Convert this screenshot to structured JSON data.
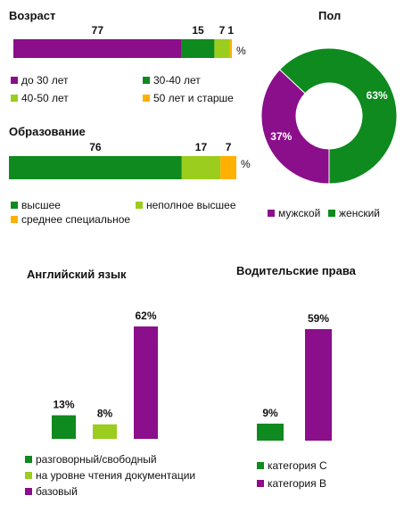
{
  "colors": {
    "purple": "#8B0E8B",
    "green": "#0E8A1E",
    "lightgreen": "#9ACD1E",
    "orange": "#FFB000"
  },
  "chart_data": [
    {
      "type": "bar",
      "orientation": "stacked-horizontal",
      "title": "Возраст",
      "unit": "%",
      "series": [
        {
          "name": "до 30 лет",
          "values": [
            77
          ],
          "color": "#8B0E8B"
        },
        {
          "name": "30-40  лет",
          "values": [
            15
          ],
          "color": "#0E8A1E"
        },
        {
          "name": "40-50  лет",
          "values": [
            7
          ],
          "color": "#9ACD1E"
        },
        {
          "name": "50 лет и старше",
          "values": [
            1
          ],
          "color": "#FFB000"
        }
      ],
      "legend": "bottom"
    },
    {
      "type": "bar",
      "orientation": "stacked-horizontal",
      "title": "Образование",
      "unit": "%",
      "series": [
        {
          "name": "высшее",
          "values": [
            76
          ],
          "color": "#0E8A1E"
        },
        {
          "name": "неполное высшее",
          "values": [
            17
          ],
          "color": "#9ACD1E"
        },
        {
          "name": "среднее специальное",
          "values": [
            7
          ],
          "color": "#FFB000"
        }
      ],
      "legend": "bottom"
    },
    {
      "type": "pie",
      "subtype": "donut",
      "title": "Пол",
      "labels": [
        "мужской",
        "женский"
      ],
      "values": [
        37,
        63
      ],
      "display": [
        "37%",
        "63%"
      ],
      "colors": [
        "#8B0E8B",
        "#0E8A1E"
      ],
      "legend": "bottom"
    },
    {
      "type": "bar",
      "title": "Английский язык",
      "categories": [
        "разговорный/свободный",
        "на уровне чтения документации",
        "базовый"
      ],
      "values": [
        13,
        8,
        62
      ],
      "display": [
        "13%",
        "8%",
        "62%"
      ],
      "colors": [
        "#0E8A1E",
        "#9ACD1E",
        "#8B0E8B"
      ],
      "legend": "bottom"
    },
    {
      "type": "bar",
      "title": "Водительские права",
      "categories": [
        "категория C",
        "категория B"
      ],
      "values": [
        9,
        59
      ],
      "display": [
        "9%",
        "59%"
      ],
      "colors": [
        "#0E8A1E",
        "#8B0E8B"
      ],
      "legend": "bottom"
    }
  ]
}
